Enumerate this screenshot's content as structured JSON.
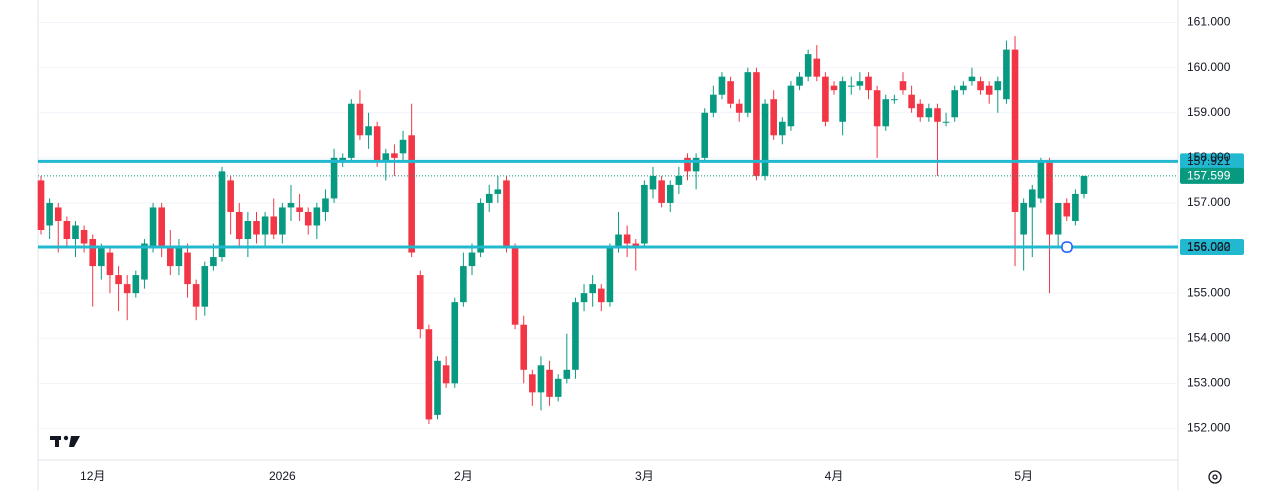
{
  "chart_data": {
    "type": "candlestick",
    "categories": [
      null,
      null,
      null,
      null,
      null,
      null,
      "12月",
      null,
      null,
      null,
      null,
      null,
      null,
      null,
      null,
      null,
      null,
      null,
      null,
      null,
      null,
      null,
      null,
      null,
      null,
      null,
      null,
      null,
      "2026",
      null,
      null,
      null,
      null,
      null,
      null,
      null,
      null,
      null,
      null,
      null,
      null,
      null,
      null,
      null,
      null,
      null,
      null,
      null,
      null,
      "2月",
      null,
      null,
      null,
      null,
      null,
      null,
      null,
      null,
      null,
      null,
      null,
      null,
      null,
      null,
      null,
      null,
      null,
      null,
      null,
      null,
      "3月",
      null,
      null,
      null,
      null,
      null,
      null,
      null,
      null,
      null,
      null,
      null,
      null,
      null,
      null,
      null,
      null,
      null,
      null,
      null,
      null,
      null,
      "4月",
      null,
      null,
      null,
      null,
      null,
      null,
      null,
      null,
      null,
      null,
      null,
      null,
      null,
      null,
      null,
      null,
      null,
      null,
      null,
      null,
      null,
      "5月",
      null,
      null,
      null,
      null,
      null,
      null,
      null
    ],
    "ohlc": [
      [
        157.5,
        157.6,
        156.3,
        156.4
      ],
      [
        156.5,
        157.1,
        156.2,
        157.0
      ],
      [
        156.9,
        157.0,
        155.9,
        156.6
      ],
      [
        156.6,
        156.7,
        156.0,
        156.2
      ],
      [
        156.2,
        156.6,
        155.8,
        156.5
      ],
      [
        156.4,
        156.5,
        155.9,
        156.1
      ],
      [
        156.2,
        156.3,
        154.7,
        155.6
      ],
      [
        155.6,
        156.1,
        155.3,
        156.0
      ],
      [
        155.9,
        156.0,
        155.0,
        155.4
      ],
      [
        155.4,
        155.6,
        154.6,
        155.2
      ],
      [
        155.2,
        155.4,
        154.4,
        155.0
      ],
      [
        155.0,
        155.5,
        154.9,
        155.4
      ],
      [
        155.3,
        156.2,
        155.1,
        156.1
      ],
      [
        156.0,
        157.0,
        155.9,
        156.9
      ],
      [
        156.9,
        157.0,
        155.8,
        156.0
      ],
      [
        156.0,
        156.4,
        155.4,
        155.6
      ],
      [
        155.6,
        156.2,
        155.4,
        156.0
      ],
      [
        155.9,
        156.1,
        154.9,
        155.2
      ],
      [
        155.2,
        155.3,
        154.4,
        154.7
      ],
      [
        154.7,
        155.7,
        154.5,
        155.6
      ],
      [
        155.6,
        156.1,
        155.5,
        155.8
      ],
      [
        155.8,
        157.8,
        155.7,
        157.7
      ],
      [
        157.5,
        157.6,
        156.3,
        156.8
      ],
      [
        156.8,
        157.0,
        156.0,
        156.2
      ],
      [
        156.2,
        156.8,
        155.8,
        156.6
      ],
      [
        156.6,
        156.8,
        156.1,
        156.3
      ],
      [
        156.3,
        156.8,
        156.0,
        156.7
      ],
      [
        156.7,
        157.1,
        156.2,
        156.3
      ],
      [
        156.3,
        157.0,
        156.1,
        156.9
      ],
      [
        156.9,
        157.4,
        156.6,
        157.0
      ],
      [
        156.9,
        157.2,
        156.6,
        156.8
      ],
      [
        156.8,
        156.9,
        156.3,
        156.5
      ],
      [
        156.5,
        157.0,
        156.2,
        156.9
      ],
      [
        156.8,
        157.3,
        156.6,
        157.1
      ],
      [
        157.1,
        158.2,
        157.0,
        158.0
      ],
      [
        157.9,
        158.1,
        157.8,
        158.0
      ],
      [
        158.0,
        159.3,
        157.9,
        159.2
      ],
      [
        159.2,
        159.5,
        158.4,
        158.5
      ],
      [
        158.5,
        159.0,
        158.2,
        158.7
      ],
      [
        158.7,
        158.8,
        157.8,
        157.9
      ],
      [
        157.9,
        158.2,
        157.5,
        158.1
      ],
      [
        158.1,
        158.3,
        157.6,
        158.0
      ],
      [
        158.1,
        158.6,
        157.9,
        158.4
      ],
      [
        158.5,
        159.2,
        155.8,
        155.9
      ],
      [
        155.4,
        155.5,
        154.0,
        154.2
      ],
      [
        154.2,
        154.3,
        152.1,
        152.2
      ],
      [
        152.3,
        153.6,
        152.2,
        153.5
      ],
      [
        153.4,
        153.6,
        152.9,
        153.0
      ],
      [
        153.0,
        154.9,
        152.9,
        154.8
      ],
      [
        154.8,
        155.9,
        154.7,
        155.6
      ],
      [
        155.6,
        156.1,
        155.4,
        155.9
      ],
      [
        155.9,
        157.1,
        155.8,
        157.0
      ],
      [
        157.0,
        157.4,
        156.8,
        157.2
      ],
      [
        157.2,
        157.6,
        157.0,
        157.3
      ],
      [
        157.5,
        157.6,
        155.9,
        156.0
      ],
      [
        156.0,
        156.1,
        154.2,
        154.3
      ],
      [
        154.3,
        154.5,
        153.0,
        153.3
      ],
      [
        153.2,
        153.3,
        152.5,
        152.8
      ],
      [
        152.8,
        153.6,
        152.4,
        153.4
      ],
      [
        153.3,
        153.5,
        152.5,
        152.7
      ],
      [
        152.7,
        153.2,
        152.6,
        153.1
      ],
      [
        153.1,
        154.1,
        153.0,
        153.3
      ],
      [
        153.3,
        154.9,
        153.1,
        154.8
      ],
      [
        154.8,
        155.2,
        154.6,
        155.0
      ],
      [
        155.0,
        155.4,
        154.7,
        155.2
      ],
      [
        155.1,
        155.2,
        154.6,
        154.8
      ],
      [
        154.8,
        156.1,
        154.7,
        156.0
      ],
      [
        156.0,
        156.8,
        155.9,
        156.3
      ],
      [
        156.3,
        156.5,
        155.8,
        156.1
      ],
      [
        156.1,
        156.2,
        155.5,
        156.0
      ],
      [
        156.1,
        157.5,
        156.0,
        157.4
      ],
      [
        157.3,
        157.8,
        157.1,
        157.6
      ],
      [
        157.5,
        157.6,
        156.9,
        157.0
      ],
      [
        157.0,
        157.5,
        156.8,
        157.4
      ],
      [
        157.4,
        157.8,
        157.2,
        157.6
      ],
      [
        158.0,
        158.1,
        157.5,
        157.7
      ],
      [
        157.7,
        158.1,
        157.3,
        158.0
      ],
      [
        158.0,
        159.1,
        157.9,
        159.0
      ],
      [
        159.0,
        159.6,
        158.9,
        159.4
      ],
      [
        159.4,
        159.9,
        159.3,
        159.8
      ],
      [
        159.7,
        159.8,
        159.1,
        159.2
      ],
      [
        159.2,
        159.3,
        158.8,
        159.0
      ],
      [
        159.0,
        160.0,
        158.9,
        159.9
      ],
      [
        159.9,
        160.0,
        157.5,
        157.6
      ],
      [
        157.6,
        159.3,
        157.5,
        159.2
      ],
      [
        159.3,
        159.5,
        158.4,
        158.5
      ],
      [
        158.5,
        158.9,
        158.3,
        158.8
      ],
      [
        158.7,
        159.7,
        158.6,
        159.6
      ],
      [
        159.6,
        159.9,
        159.5,
        159.8
      ],
      [
        159.8,
        160.4,
        159.7,
        160.3
      ],
      [
        160.2,
        160.5,
        159.7,
        159.8
      ],
      [
        159.8,
        159.9,
        158.7,
        158.8
      ],
      [
        159.6,
        159.7,
        159.4,
        159.5
      ],
      [
        158.8,
        159.8,
        158.5,
        159.7
      ],
      [
        159.6,
        159.8,
        159.4,
        159.6
      ],
      [
        159.6,
        159.9,
        159.5,
        159.7
      ],
      [
        159.8,
        159.9,
        159.3,
        159.5
      ],
      [
        159.5,
        159.6,
        158.0,
        158.7
      ],
      [
        158.7,
        159.4,
        158.6,
        159.3
      ],
      [
        159.3,
        159.4,
        159.2,
        159.3
      ],
      [
        159.7,
        159.9,
        159.4,
        159.5
      ],
      [
        159.4,
        159.6,
        159.0,
        159.1
      ],
      [
        159.2,
        159.3,
        158.8,
        158.9
      ],
      [
        158.9,
        159.2,
        158.8,
        159.1
      ],
      [
        159.1,
        159.2,
        157.6,
        158.8
      ],
      [
        158.8,
        159.0,
        158.7,
        158.8
      ],
      [
        158.9,
        159.6,
        158.8,
        159.5
      ],
      [
        159.5,
        159.7,
        159.4,
        159.6
      ],
      [
        159.7,
        160.0,
        159.6,
        159.8
      ],
      [
        159.7,
        159.8,
        159.4,
        159.5
      ],
      [
        159.6,
        159.7,
        159.2,
        159.4
      ],
      [
        159.5,
        159.8,
        159.0,
        159.7
      ],
      [
        159.3,
        160.6,
        159.2,
        160.4
      ],
      [
        160.4,
        160.7,
        155.6,
        156.8
      ],
      [
        156.3,
        157.1,
        155.5,
        157.0
      ],
      [
        156.9,
        157.4,
        155.8,
        157.3
      ],
      [
        157.1,
        158.0,
        157.0,
        157.9
      ],
      [
        157.9,
        158.0,
        155.0,
        156.3
      ],
      [
        156.3,
        157.0,
        156.0,
        157.0
      ],
      [
        157.0,
        157.1,
        156.6,
        156.7
      ],
      [
        156.6,
        157.3,
        156.5,
        157.2
      ],
      [
        157.2,
        157.6,
        157.1,
        157.6
      ]
    ],
    "up_color": "#089981",
    "down_color": "#f23645",
    "ylim": [
      151.3,
      161.5
    ],
    "yticks": [
      {
        "value": 161,
        "label": "161.000"
      },
      {
        "value": 160,
        "label": "160.000"
      },
      {
        "value": 159,
        "label": "159.000"
      },
      {
        "value": 158,
        "label": "158.000"
      },
      {
        "value": 157,
        "label": "157.000"
      },
      {
        "value": 156,
        "label": "156.000"
      },
      {
        "value": 155,
        "label": "155.000"
      },
      {
        "value": 154,
        "label": "154.000"
      },
      {
        "value": 153,
        "label": "153.000"
      },
      {
        "value": 152,
        "label": "152.000"
      }
    ],
    "grid": true,
    "hlines": [
      {
        "value": 157.921,
        "color": "#22b8cf"
      },
      {
        "value": 156.022,
        "color": "#22b8cf"
      }
    ],
    "last_price": 157.599
  }
}
